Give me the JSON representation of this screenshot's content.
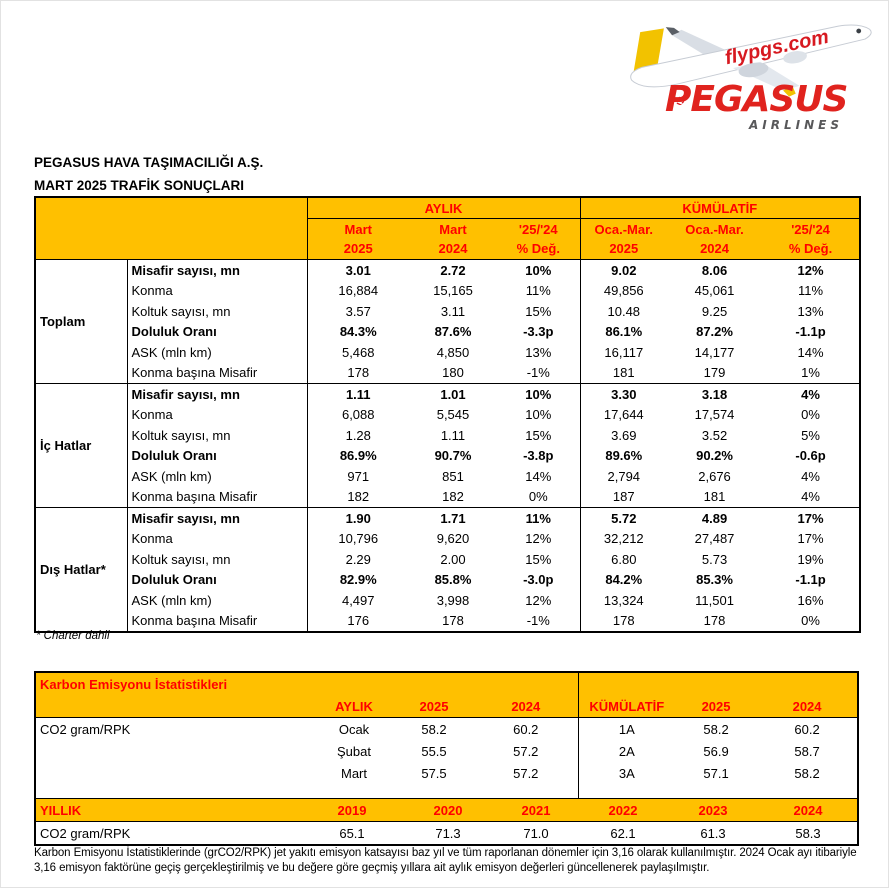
{
  "logo": {
    "brand": "PEGASUS",
    "sub_brand": "AIRLINES",
    "fuselage_text": "flypgs.com",
    "tail_text": "PEGASUS"
  },
  "header": {
    "title1": "PEGASUS HAVA TAŞIMACILIĞI A.Ş.",
    "title2": "MART 2025 TRAFİK SONUÇLARI"
  },
  "traffic_table": {
    "group_headers": {
      "monthly": "AYLIK",
      "cumulative": "KÜMÜLATİF"
    },
    "col_headers": [
      {
        "line1": "Mart",
        "line2": "2025"
      },
      {
        "line1": "Mart",
        "line2": "2024"
      },
      {
        "line1": "'25/'24",
        "line2": "% Değ."
      },
      {
        "line1": "Oca.-Mar.",
        "line2": "2025"
      },
      {
        "line1": "Oca.-Mar.",
        "line2": "2024"
      },
      {
        "line1": "'25/'24",
        "line2": "% Değ."
      }
    ],
    "groups": [
      {
        "label": "Toplam",
        "rows": [
          {
            "metric": "Misafir sayısı, mn",
            "bold": true,
            "values": [
              "3.01",
              "2.72",
              "10%",
              "9.02",
              "8.06",
              "12%"
            ]
          },
          {
            "metric": "Konma",
            "bold": false,
            "values": [
              "16,884",
              "15,165",
              "11%",
              "49,856",
              "45,061",
              "11%"
            ]
          },
          {
            "metric": "Koltuk sayısı, mn",
            "bold": false,
            "values": [
              "3.57",
              "3.11",
              "15%",
              "10.48",
              "9.25",
              "13%"
            ]
          },
          {
            "metric": "Doluluk Oranı",
            "bold": true,
            "values": [
              "84.3%",
              "87.6%",
              "-3.3p",
              "86.1%",
              "87.2%",
              "-1.1p"
            ]
          },
          {
            "metric": "ASK (mln km)",
            "bold": false,
            "values": [
              "5,468",
              "4,850",
              "13%",
              "16,117",
              "14,177",
              "14%"
            ]
          },
          {
            "metric": "Konma başına Misafir",
            "bold": false,
            "values": [
              "178",
              "180",
              "-1%",
              "181",
              "179",
              "1%"
            ]
          }
        ]
      },
      {
        "label": "İç Hatlar",
        "rows": [
          {
            "metric": "Misafir sayısı, mn",
            "bold": true,
            "values": [
              "1.11",
              "1.01",
              "10%",
              "3.30",
              "3.18",
              "4%"
            ]
          },
          {
            "metric": "Konma",
            "bold": false,
            "values": [
              "6,088",
              "5,545",
              "10%",
              "17,644",
              "17,574",
              "0%"
            ]
          },
          {
            "metric": "Koltuk sayısı, mn",
            "bold": false,
            "values": [
              "1.28",
              "1.11",
              "15%",
              "3.69",
              "3.52",
              "5%"
            ]
          },
          {
            "metric": "Doluluk Oranı",
            "bold": true,
            "values": [
              "86.9%",
              "90.7%",
              "-3.8p",
              "89.6%",
              "90.2%",
              "-0.6p"
            ]
          },
          {
            "metric": "ASK (mln km)",
            "bold": false,
            "values": [
              "971",
              "851",
              "14%",
              "2,794",
              "2,676",
              "4%"
            ]
          },
          {
            "metric": "Konma başına Misafir",
            "bold": false,
            "values": [
              "182",
              "182",
              "0%",
              "187",
              "181",
              "4%"
            ]
          }
        ]
      },
      {
        "label": "Dış Hatlar*",
        "rows": [
          {
            "metric": "Misafir sayısı, mn",
            "bold": true,
            "values": [
              "1.90",
              "1.71",
              "11%",
              "5.72",
              "4.89",
              "17%"
            ]
          },
          {
            "metric": "Konma",
            "bold": false,
            "values": [
              "10,796",
              "9,620",
              "12%",
              "32,212",
              "27,487",
              "17%"
            ]
          },
          {
            "metric": "Koltuk sayısı, mn",
            "bold": false,
            "values": [
              "2.29",
              "2.00",
              "15%",
              "6.80",
              "5.73",
              "19%"
            ]
          },
          {
            "metric": "Doluluk Oranı",
            "bold": true,
            "values": [
              "82.9%",
              "85.8%",
              "-3.0p",
              "84.2%",
              "85.3%",
              "-1.1p"
            ]
          },
          {
            "metric": "ASK (mln km)",
            "bold": false,
            "values": [
              "4,497",
              "3,998",
              "12%",
              "13,324",
              "11,501",
              "16%"
            ]
          },
          {
            "metric": "Konma başına Misafir",
            "bold": false,
            "values": [
              "176",
              "178",
              "-1%",
              "178",
              "178",
              "0%"
            ]
          }
        ]
      }
    ],
    "footnote": "* Charter dahil"
  },
  "carbon_table": {
    "title": "Karbon Emisyonu İstatistikleri",
    "row_label": "CO2 gram/RPK",
    "monthly": {
      "header": "AYLIK",
      "col1": "2025",
      "col2": "2024",
      "rows": [
        [
          "Ocak",
          "58.2",
          "60.2"
        ],
        [
          "Şubat",
          "55.5",
          "57.2"
        ],
        [
          "Mart",
          "57.5",
          "57.2"
        ]
      ]
    },
    "cumulative": {
      "header": "KÜMÜLATİF",
      "col1": "2025",
      "col2": "2024",
      "rows": [
        [
          "1A",
          "58.2",
          "60.2"
        ],
        [
          "2A",
          "56.9",
          "58.7"
        ],
        [
          "3A",
          "57.1",
          "58.2"
        ]
      ]
    },
    "yearly": {
      "header": "YILLIK",
      "row_label": "CO2 gram/RPK",
      "years": [
        "2019",
        "2020",
        "2021",
        "2022",
        "2023",
        "2024"
      ],
      "values": [
        "65.1",
        "71.3",
        "71.0",
        "62.1",
        "61.3",
        "58.3"
      ]
    }
  },
  "footer_note": "Karbon Emisyonu İstatistiklerinde (grCO2/RPK) jet yakıtı emisyon katsayısı baz yıl ve tüm raporlanan dönemler için 3,16 olarak kullanılmıştır. 2024 Ocak ayı itibariyle 3,16 emisyon faktörüne geçiş gerçekleştirilmiş ve bu değere göre geçmiş yıllara ait aylık emisyon değerleri güncellenerek paylaşılmıştır.",
  "colors": {
    "table_header_bg": "#FFC000",
    "table_header_text": "#FF0000",
    "brand_red": "#E0231E",
    "tail_yellow": "#F2C200",
    "airlines_gray": "#58585A"
  }
}
